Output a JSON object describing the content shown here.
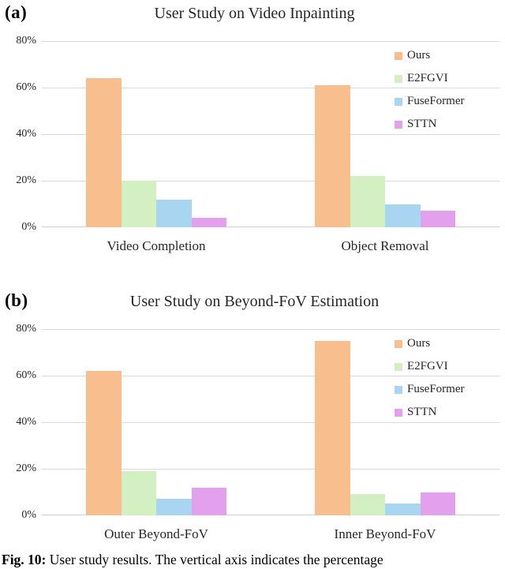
{
  "caption": {
    "prefix": "Fig. 10:",
    "text": "User study results. The vertical axis indicates the percentage"
  },
  "colors": {
    "ours": "#F9BE8E",
    "e2fgvi": "#D2F0C2",
    "fuseformer": "#A8D5F0",
    "sttn": "#E3A0EC",
    "gridline": "#D9D9D9",
    "text": "#262626"
  },
  "chart_data": [
    {
      "type": "bar",
      "panel_label": "(a)",
      "title": "User Study on Video Inpainting",
      "categories": [
        "Video Completion",
        "Object Removal"
      ],
      "series": [
        {
          "name": "Ours",
          "color": "#F9BE8E",
          "values": [
            64,
            61
          ]
        },
        {
          "name": "E2FGVI",
          "color": "#D2F0C2",
          "values": [
            20,
            22
          ]
        },
        {
          "name": "FuseFormer",
          "color": "#A8D5F0",
          "values": [
            12,
            10
          ]
        },
        {
          "name": "STTN",
          "color": "#E3A0EC",
          "values": [
            4,
            7
          ]
        }
      ],
      "xlabel": "",
      "ylabel": "",
      "ylim": [
        0,
        80
      ],
      "yticks": [
        "80%",
        "60%",
        "40%",
        "20%",
        "0%"
      ],
      "grid": true,
      "legend_position": "top-right"
    },
    {
      "type": "bar",
      "panel_label": "(b)",
      "title": "User Study on Beyond-FoV Estimation",
      "categories": [
        "Outer Beyond-FoV",
        "Inner Beyond-FoV"
      ],
      "series": [
        {
          "name": "Ours",
          "color": "#F9BE8E",
          "values": [
            62,
            75
          ]
        },
        {
          "name": "E2FGVI",
          "color": "#D2F0C2",
          "values": [
            19,
            9
          ]
        },
        {
          "name": "FuseFormer",
          "color": "#A8D5F0",
          "values": [
            7,
            5
          ]
        },
        {
          "name": "STTN",
          "color": "#E3A0EC",
          "values": [
            12,
            10
          ]
        }
      ],
      "xlabel": "",
      "ylabel": "",
      "ylim": [
        0,
        80
      ],
      "yticks": [
        "80%",
        "60%",
        "40%",
        "20%",
        "0%"
      ],
      "grid": true,
      "legend_position": "top-right"
    }
  ]
}
